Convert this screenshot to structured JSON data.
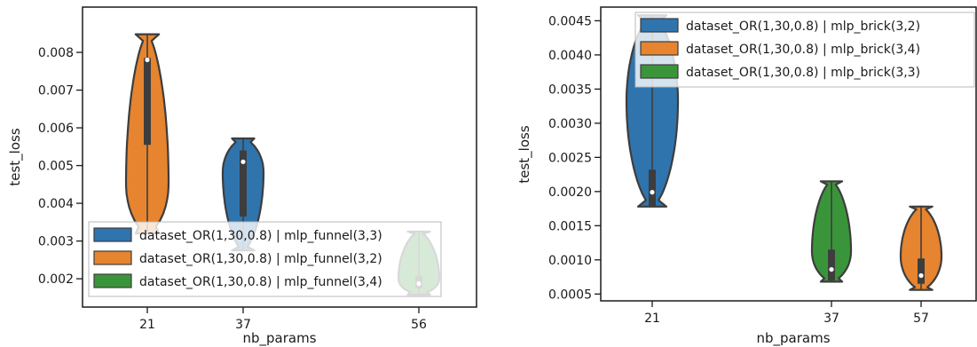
{
  "chart_data": [
    {
      "type": "violin",
      "xlabel": "nb_params",
      "ylabel": "test_loss",
      "categories": [
        "21",
        "37",
        "56"
      ],
      "ylim": [
        0.00125,
        0.0092
      ],
      "yticks": [
        0.002,
        0.003,
        0.004,
        0.005,
        0.006,
        0.007,
        0.008
      ],
      "ytick_labels": [
        "0.002",
        "0.003",
        "0.004",
        "0.005",
        "0.006",
        "0.007",
        "0.008"
      ],
      "legend_position": "lower-right",
      "series": [
        {
          "name": "dataset_OR(1,30,0.8) | mlp_funnel(3,3)",
          "color": "#2f74ad",
          "category": "37",
          "min": 0.00275,
          "q1": 0.00365,
          "median": 0.0051,
          "q3": 0.0054,
          "max": 0.00572
        },
        {
          "name": "dataset_OR(1,30,0.8) | mlp_funnel(3,2)",
          "color": "#e6842f",
          "category": "21",
          "min": 0.0032,
          "q1": 0.00555,
          "median": 0.0078,
          "q3": 0.00785,
          "max": 0.00848
        },
        {
          "name": "dataset_OR(1,30,0.8) | mlp_funnel(3,4)",
          "color": "#3a953a",
          "category": "56",
          "min": 0.00158,
          "q1": 0.00175,
          "median": 0.00187,
          "q3": 0.00208,
          "max": 0.00325
        }
      ]
    },
    {
      "type": "violin",
      "xlabel": "nb_params",
      "ylabel": "test_loss",
      "categories": [
        "21",
        "37",
        "57"
      ],
      "ylim": [
        0.0004,
        0.0047
      ],
      "yticks": [
        0.0005,
        0.001,
        0.0015,
        0.002,
        0.0025,
        0.003,
        0.0035,
        0.004,
        0.0045
      ],
      "ytick_labels": [
        "0.0005",
        "0.0010",
        "0.0015",
        "0.0020",
        "0.0025",
        "0.0030",
        "0.0035",
        "0.0040",
        "0.0045"
      ],
      "legend_position": "upper-right",
      "series": [
        {
          "name": "dataset_OR(1,30,0.8) | mlp_brick(3,2)",
          "color": "#2f74ad",
          "category": "21",
          "min": 0.00178,
          "q1": 0.00178,
          "median": 0.00199,
          "q3": 0.00232,
          "max": 0.00458
        },
        {
          "name": "dataset_OR(1,30,0.8) | mlp_brick(3,4)",
          "color": "#e6842f",
          "category": "57",
          "min": 0.00056,
          "q1": 0.00065,
          "median": 0.00077,
          "q3": 0.00102,
          "max": 0.00178
        },
        {
          "name": "dataset_OR(1,30,0.8) | mlp_brick(3,3)",
          "color": "#3a953a",
          "category": "37",
          "min": 0.00068,
          "q1": 0.0007,
          "median": 0.00086,
          "q3": 0.00115,
          "max": 0.00215
        }
      ]
    }
  ]
}
